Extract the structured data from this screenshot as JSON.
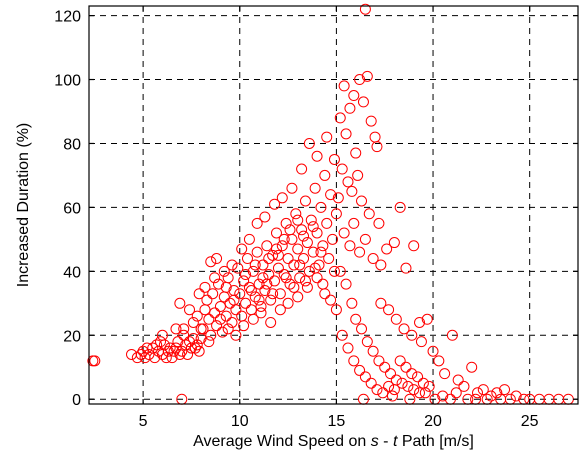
{
  "chart_data": {
    "type": "scatter",
    "title": "",
    "xlabel_parts": [
      "Average Wind Speed on ",
      "s",
      " - ",
      "t",
      " Path [m/s]"
    ],
    "ylabel": "Increased Duration (%)",
    "xlim": [
      2.2,
      27.5
    ],
    "ylim": [
      -1.5,
      123
    ],
    "xticks": [
      5,
      10,
      15,
      20,
      25
    ],
    "yticks": [
      0,
      20,
      40,
      60,
      80,
      100,
      120
    ],
    "grid": true,
    "legend": "none",
    "marker": "circle-open",
    "color": "#ff0000",
    "series": [
      {
        "points": [
          [
            2.4,
            12
          ],
          [
            2.5,
            12
          ],
          [
            4.4,
            14
          ],
          [
            4.7,
            13
          ],
          [
            4.9,
            14
          ],
          [
            5.0,
            15
          ],
          [
            5.1,
            13
          ],
          [
            5.3,
            14
          ],
          [
            5.5,
            16
          ],
          [
            5.6,
            13
          ],
          [
            5.8,
            15
          ],
          [
            6.0,
            14
          ],
          [
            6.1,
            17
          ],
          [
            6.3,
            15
          ],
          [
            6.5,
            13
          ],
          [
            6.7,
            16
          ],
          [
            6.8,
            18
          ],
          [
            7.0,
            15
          ],
          [
            7.2,
            17
          ],
          [
            7.3,
            14
          ],
          [
            7.5,
            16
          ],
          [
            7.6,
            19
          ],
          [
            7.8,
            17
          ],
          [
            7.9,
            15
          ],
          [
            5.2,
            16
          ],
          [
            5.9,
            18
          ],
          [
            6.4,
            16
          ],
          [
            6.9,
            14
          ],
          [
            7.4,
            18
          ],
          [
            6.2,
            13
          ],
          [
            6.6,
            15
          ],
          [
            7.1,
            20
          ],
          [
            7.7,
            16
          ],
          [
            5.7,
            17
          ],
          [
            6.0,
            20
          ],
          [
            6.7,
            22
          ],
          [
            6.9,
            30
          ],
          [
            7.1,
            22
          ],
          [
            7.4,
            28
          ],
          [
            7.6,
            24
          ],
          [
            7.8,
            26
          ],
          [
            8.0,
            19
          ],
          [
            8.1,
            22
          ],
          [
            8.2,
            28
          ],
          [
            8.3,
            31
          ],
          [
            8.4,
            25
          ],
          [
            8.5,
            20
          ],
          [
            8.6,
            33
          ],
          [
            8.7,
            27
          ],
          [
            8.8,
            23
          ],
          [
            8.9,
            36
          ],
          [
            9.0,
            29
          ],
          [
            9.1,
            21
          ],
          [
            9.2,
            32
          ],
          [
            9.3,
            26
          ],
          [
            9.4,
            38
          ],
          [
            9.5,
            30
          ],
          [
            9.6,
            24
          ],
          [
            9.7,
            34
          ],
          [
            9.8,
            28
          ],
          [
            9.9,
            41
          ],
          [
            10.0,
            33
          ],
          [
            10.1,
            26
          ],
          [
            10.2,
            37
          ],
          [
            10.3,
            30
          ],
          [
            10.4,
            44
          ],
          [
            10.5,
            35
          ],
          [
            10.6,
            28
          ],
          [
            10.7,
            40
          ],
          [
            10.8,
            32
          ],
          [
            10.9,
            46
          ],
          [
            11.0,
            36
          ],
          [
            11.1,
            29
          ],
          [
            11.2,
            42
          ],
          [
            11.3,
            34
          ],
          [
            11.4,
            48
          ],
          [
            11.5,
            39
          ],
          [
            11.6,
            31
          ],
          [
            11.7,
            45
          ],
          [
            11.8,
            37
          ],
          [
            11.9,
            52
          ],
          [
            12.0,
            41
          ],
          [
            12.1,
            33
          ],
          [
            12.2,
            48
          ],
          [
            12.3,
            39
          ],
          [
            12.4,
            55
          ],
          [
            12.5,
            44
          ],
          [
            12.6,
            36
          ],
          [
            12.7,
            50
          ],
          [
            12.8,
            42
          ],
          [
            12.9,
            58
          ],
          [
            13.0,
            47
          ],
          [
            13.1,
            38
          ],
          [
            13.2,
            53
          ],
          [
            13.3,
            44
          ],
          [
            13.4,
            62
          ],
          [
            13.5,
            49
          ],
          [
            13.6,
            40
          ],
          [
            13.7,
            56
          ],
          [
            13.8,
            46
          ],
          [
            13.9,
            66
          ],
          [
            14.0,
            52
          ],
          [
            14.1,
            42
          ],
          [
            14.2,
            60
          ],
          [
            14.3,
            48
          ],
          [
            14.4,
            70
          ],
          [
            14.5,
            55
          ],
          [
            14.6,
            44
          ],
          [
            14.7,
            64
          ],
          [
            14.8,
            50
          ],
          [
            14.9,
            75
          ],
          [
            15.0,
            58
          ],
          [
            8.5,
            43
          ],
          [
            8.8,
            44
          ],
          [
            9.2,
            40
          ],
          [
            9.6,
            42
          ],
          [
            10.1,
            47
          ],
          [
            10.5,
            50
          ],
          [
            10.9,
            55
          ],
          [
            11.3,
            57
          ],
          [
            11.8,
            61
          ],
          [
            12.2,
            63
          ],
          [
            12.7,
            66
          ],
          [
            13.2,
            72
          ],
          [
            13.6,
            80
          ],
          [
            14.0,
            76
          ],
          [
            14.5,
            82
          ],
          [
            7.9,
            33
          ],
          [
            8.2,
            35
          ],
          [
            8.7,
            38
          ],
          [
            9.0,
            25
          ],
          [
            9.4,
            22
          ],
          [
            9.8,
            20
          ],
          [
            10.2,
            23
          ],
          [
            10.7,
            25
          ],
          [
            11.1,
            27
          ],
          [
            11.6,
            24
          ],
          [
            12.1,
            28
          ],
          [
            12.5,
            30
          ],
          [
            13.0,
            32
          ],
          [
            13.5,
            35
          ],
          [
            14.0,
            38
          ],
          [
            14.4,
            33
          ],
          [
            14.9,
            40
          ],
          [
            10.8,
            42
          ],
          [
            11.2,
            38
          ],
          [
            11.5,
            44
          ],
          [
            11.9,
            47
          ],
          [
            12.3,
            50
          ],
          [
            12.6,
            53
          ],
          [
            13.0,
            56
          ],
          [
            13.3,
            51
          ],
          [
            13.8,
            54
          ],
          [
            14.2,
            46
          ],
          [
            8.0,
            22
          ],
          [
            8.4,
            18
          ],
          [
            9.3,
            35
          ],
          [
            9.7,
            31
          ],
          [
            10.3,
            39
          ],
          [
            10.6,
            34
          ],
          [
            11.0,
            31
          ],
          [
            11.4,
            36
          ],
          [
            11.7,
            33
          ],
          [
            12.0,
            45
          ],
          [
            12.4,
            38
          ],
          [
            12.8,
            35
          ],
          [
            13.1,
            42
          ],
          [
            13.4,
            37
          ],
          [
            13.9,
            41
          ],
          [
            14.3,
            36
          ],
          [
            14.7,
            31
          ],
          [
            15.0,
            28
          ],
          [
            15.2,
            88
          ],
          [
            15.4,
            98
          ],
          [
            15.5,
            83
          ],
          [
            15.7,
            91
          ],
          [
            15.9,
            95
          ],
          [
            16.0,
            77
          ],
          [
            16.2,
            100
          ],
          [
            16.4,
            93
          ],
          [
            16.5,
            122
          ],
          [
            16.6,
            101
          ],
          [
            16.8,
            87
          ],
          [
            17.0,
            82
          ],
          [
            17.1,
            79
          ],
          [
            15.3,
            72
          ],
          [
            15.6,
            68
          ],
          [
            15.8,
            65
          ],
          [
            16.1,
            70
          ],
          [
            16.3,
            62
          ],
          [
            16.7,
            58
          ],
          [
            17.2,
            55
          ],
          [
            15.1,
            63
          ],
          [
            15.4,
            52
          ],
          [
            15.7,
            48
          ],
          [
            15.9,
            55
          ],
          [
            16.2,
            46
          ],
          [
            16.5,
            50
          ],
          [
            16.9,
            44
          ],
          [
            17.3,
            42
          ],
          [
            17.6,
            47
          ],
          [
            18.0,
            49
          ],
          [
            18.3,
            60
          ],
          [
            18.6,
            41
          ],
          [
            19.0,
            48
          ],
          [
            15.2,
            40
          ],
          [
            15.5,
            36
          ],
          [
            15.8,
            30
          ],
          [
            16.0,
            25
          ],
          [
            16.3,
            22
          ],
          [
            16.6,
            18
          ],
          [
            16.9,
            15
          ],
          [
            17.2,
            12
          ],
          [
            17.5,
            10
          ],
          [
            17.8,
            8
          ],
          [
            18.1,
            6
          ],
          [
            18.4,
            5
          ],
          [
            18.7,
            4
          ],
          [
            19.0,
            3
          ],
          [
            19.3,
            2
          ],
          [
            15.3,
            20
          ],
          [
            15.6,
            16
          ],
          [
            15.9,
            12
          ],
          [
            16.2,
            9
          ],
          [
            16.5,
            7
          ],
          [
            16.8,
            5
          ],
          [
            17.1,
            3
          ],
          [
            17.4,
            2
          ],
          [
            17.7,
            4
          ],
          [
            18.0,
            3
          ],
          [
            18.3,
            12
          ],
          [
            18.6,
            10
          ],
          [
            18.9,
            8
          ],
          [
            19.2,
            7
          ],
          [
            19.5,
            5
          ],
          [
            19.8,
            4
          ],
          [
            17.3,
            30
          ],
          [
            17.7,
            28
          ],
          [
            18.1,
            25
          ],
          [
            18.5,
            22
          ],
          [
            18.9,
            20
          ],
          [
            19.3,
            24
          ],
          [
            19.7,
            25
          ],
          [
            19.4,
            18
          ],
          [
            20.0,
            15
          ],
          [
            20.3,
            12
          ],
          [
            20.6,
            8
          ],
          [
            21.0,
            20
          ],
          [
            21.3,
            6
          ],
          [
            21.6,
            4
          ],
          [
            22.0,
            10
          ],
          [
            22.3,
            2
          ],
          [
            22.6,
            3
          ],
          [
            23.0,
            1
          ],
          [
            23.3,
            2
          ],
          [
            23.7,
            3
          ],
          [
            21.8,
            0
          ],
          [
            22.2,
            0
          ],
          [
            22.8,
            0
          ],
          [
            23.5,
            0
          ],
          [
            24.0,
            0
          ],
          [
            24.3,
            1
          ],
          [
            24.7,
            0
          ],
          [
            25.0,
            0
          ],
          [
            25.5,
            0
          ],
          [
            26.0,
            0
          ],
          [
            26.5,
            0
          ],
          [
            27.0,
            0
          ],
          [
            20.1,
            0
          ],
          [
            20.5,
            1
          ],
          [
            20.9,
            0
          ],
          [
            21.2,
            2
          ],
          [
            7.0,
            0
          ],
          [
            16.4,
            0
          ],
          [
            17.9,
            1
          ],
          [
            18.8,
            0
          ],
          [
            19.6,
            2
          ]
        ]
      }
    ]
  }
}
